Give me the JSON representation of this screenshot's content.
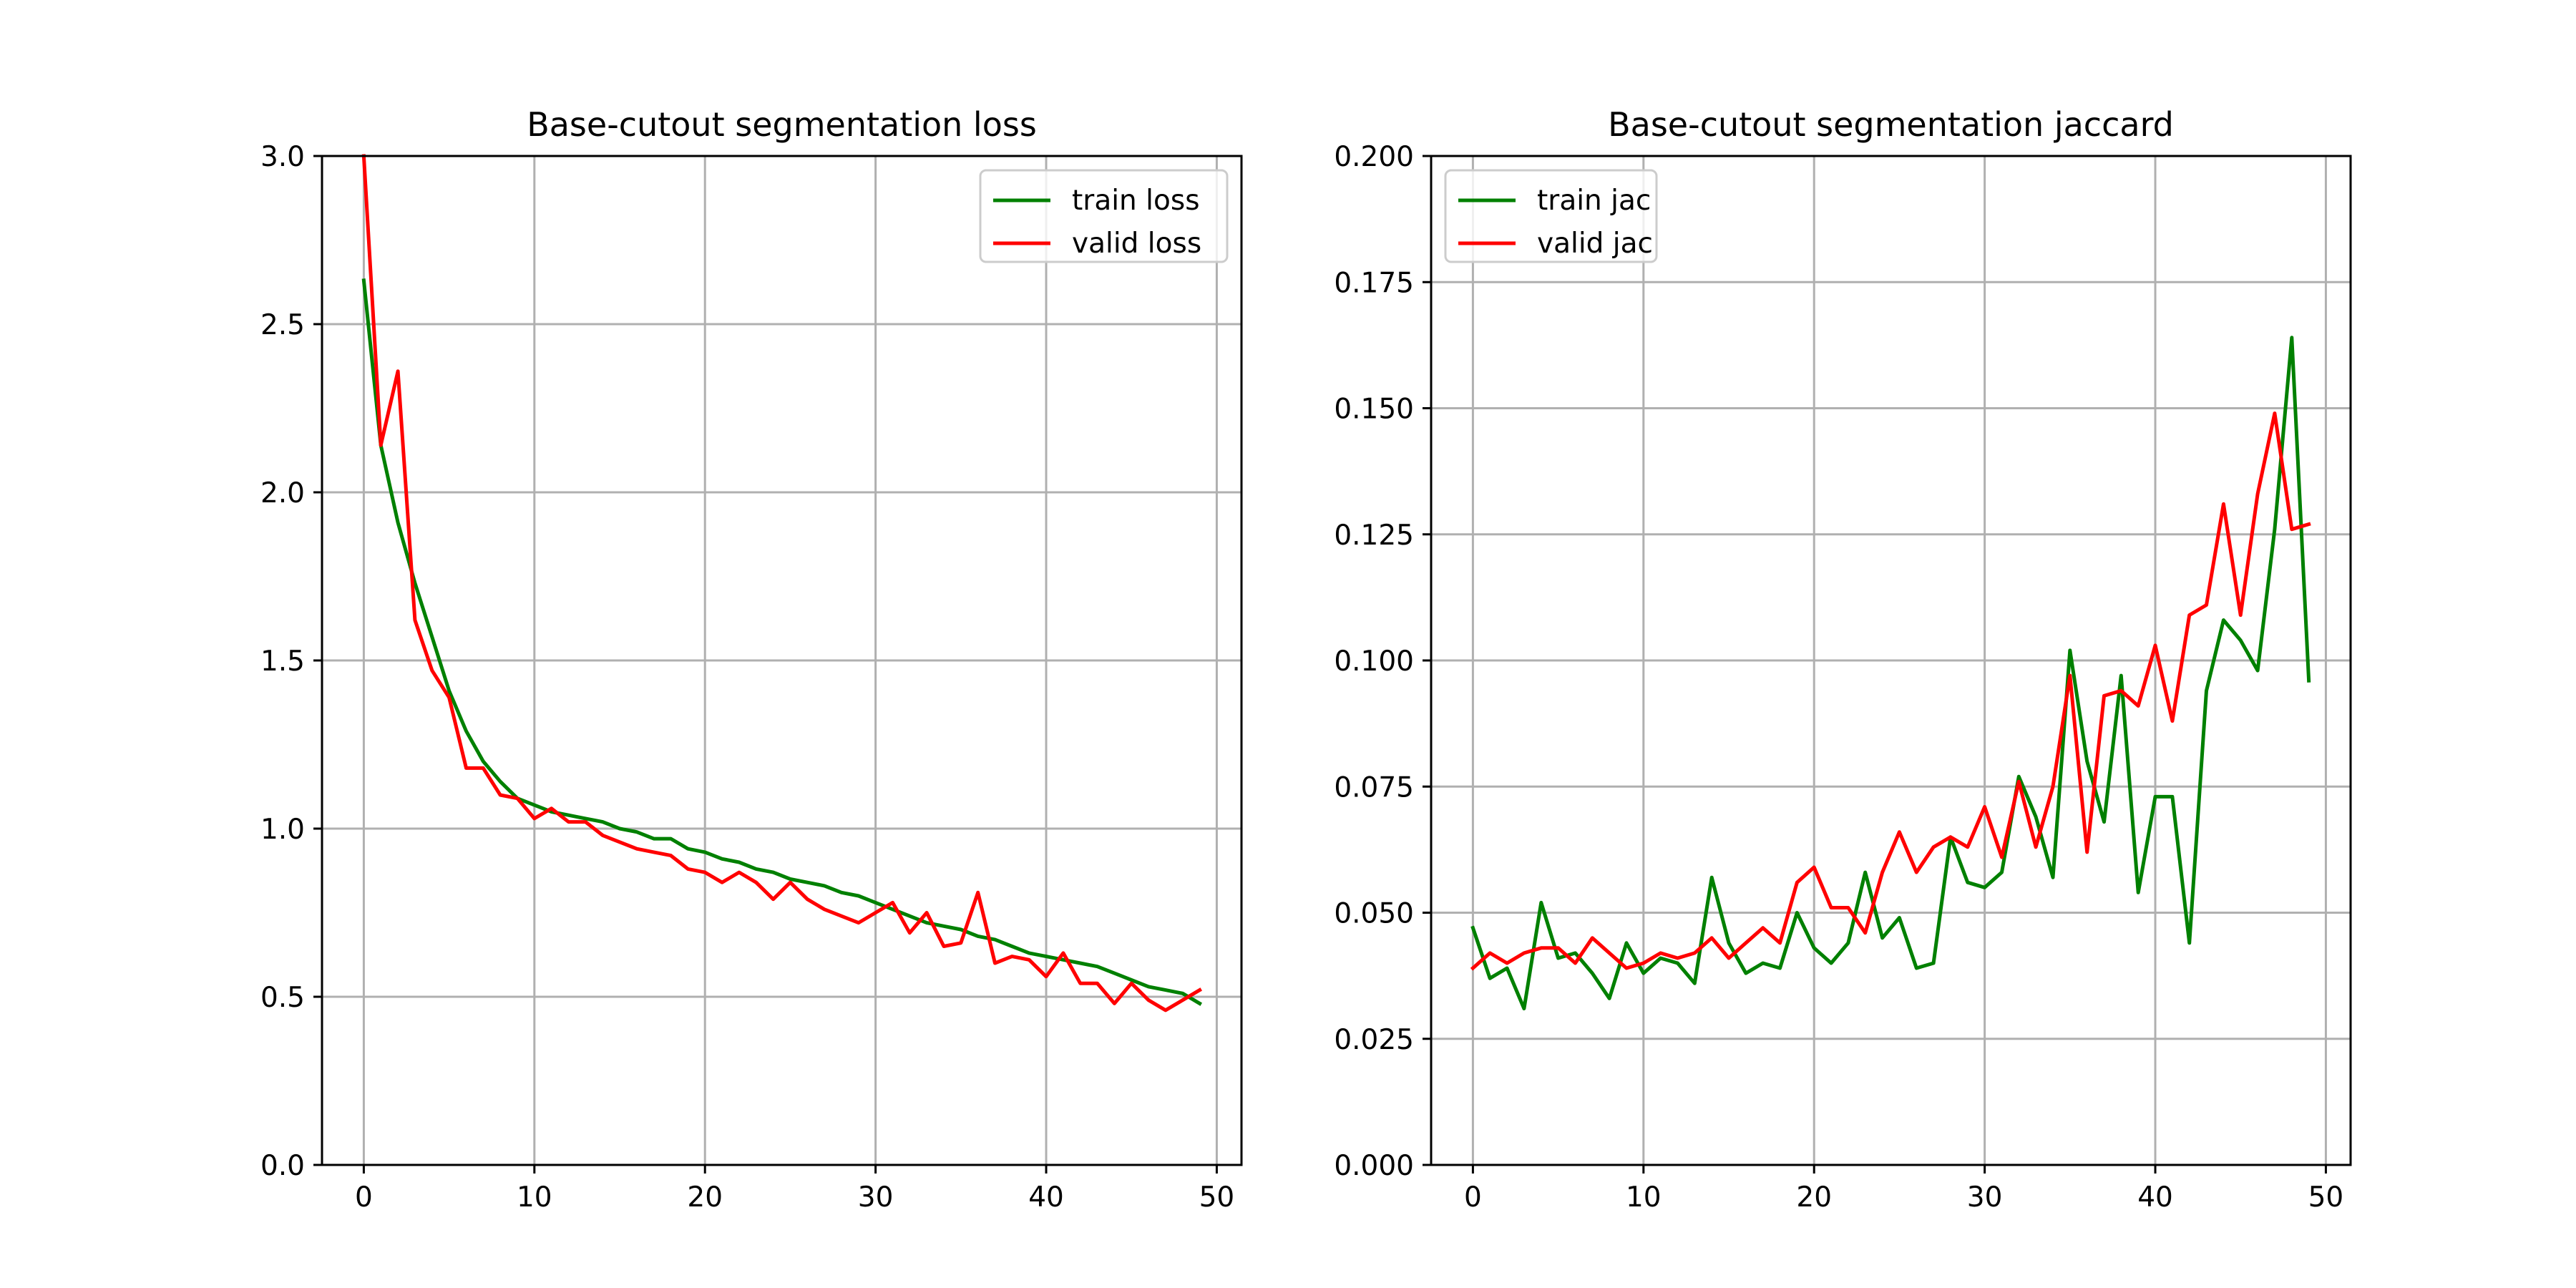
{
  "chart_data": [
    {
      "type": "line",
      "title": "Base-cutout segmentation loss",
      "xlabel": "",
      "ylabel": "",
      "xlim": [
        -2.45,
        51.45
      ],
      "ylim": [
        0.0,
        3.0
      ],
      "xticks": [
        0,
        10,
        20,
        30,
        40,
        50
      ],
      "xtick_labels": [
        "0",
        "10",
        "20",
        "30",
        "40",
        "50"
      ],
      "yticks": [
        0.0,
        0.5,
        1.0,
        1.5,
        2.0,
        2.5,
        3.0
      ],
      "ytick_labels": [
        "0.0",
        "0.5",
        "1.0",
        "1.5",
        "2.0",
        "2.5",
        "3.0"
      ],
      "grid": true,
      "legend_position": "upper right",
      "series": [
        {
          "name": "train loss",
          "color": "#008000",
          "x": [
            0,
            1,
            2,
            3,
            4,
            5,
            6,
            7,
            8,
            9,
            10,
            11,
            12,
            13,
            14,
            15,
            16,
            17,
            18,
            19,
            20,
            21,
            22,
            23,
            24,
            25,
            26,
            27,
            28,
            29,
            30,
            31,
            32,
            33,
            34,
            35,
            36,
            37,
            38,
            39,
            40,
            41,
            42,
            43,
            44,
            45,
            46,
            47,
            48,
            49
          ],
          "y": [
            2.63,
            2.14,
            1.91,
            1.73,
            1.57,
            1.41,
            1.29,
            1.2,
            1.14,
            1.09,
            1.07,
            1.05,
            1.04,
            1.03,
            1.02,
            1.0,
            0.99,
            0.97,
            0.97,
            0.94,
            0.93,
            0.91,
            0.9,
            0.88,
            0.87,
            0.85,
            0.84,
            0.83,
            0.81,
            0.8,
            0.78,
            0.76,
            0.74,
            0.72,
            0.71,
            0.7,
            0.68,
            0.67,
            0.65,
            0.63,
            0.62,
            0.61,
            0.6,
            0.59,
            0.57,
            0.55,
            0.53,
            0.52,
            0.51,
            0.48
          ]
        },
        {
          "name": "valid loss",
          "color": "#ff0000",
          "x": [
            0,
            1,
            2,
            3,
            4,
            5,
            6,
            7,
            8,
            9,
            10,
            11,
            12,
            13,
            14,
            15,
            16,
            17,
            18,
            19,
            20,
            21,
            22,
            23,
            24,
            25,
            26,
            27,
            28,
            29,
            30,
            31,
            32,
            33,
            34,
            35,
            36,
            37,
            38,
            39,
            40,
            41,
            42,
            43,
            44,
            45,
            46,
            47,
            48,
            49
          ],
          "y": [
            3.0,
            2.14,
            2.36,
            1.62,
            1.47,
            1.39,
            1.18,
            1.18,
            1.1,
            1.09,
            1.03,
            1.06,
            1.02,
            1.02,
            0.98,
            0.96,
            0.94,
            0.93,
            0.92,
            0.88,
            0.87,
            0.84,
            0.87,
            0.84,
            0.79,
            0.84,
            0.79,
            0.76,
            0.74,
            0.72,
            0.75,
            0.78,
            0.69,
            0.75,
            0.65,
            0.66,
            0.81,
            0.6,
            0.62,
            0.61,
            0.56,
            0.63,
            0.54,
            0.54,
            0.48,
            0.54,
            0.49,
            0.46,
            0.49,
            0.52
          ]
        }
      ]
    },
    {
      "type": "line",
      "title": "Base-cutout segmentation jaccard",
      "xlabel": "",
      "ylabel": "",
      "xlim": [
        -2.45,
        51.45
      ],
      "ylim": [
        0.0,
        0.2
      ],
      "xticks": [
        0,
        10,
        20,
        30,
        40,
        50
      ],
      "xtick_labels": [
        "0",
        "10",
        "20",
        "30",
        "40",
        "50"
      ],
      "yticks": [
        0.0,
        0.025,
        0.05,
        0.075,
        0.1,
        0.125,
        0.15,
        0.175,
        0.2
      ],
      "ytick_labels": [
        "0.000",
        "0.025",
        "0.050",
        "0.075",
        "0.100",
        "0.125",
        "0.150",
        "0.175",
        "0.200"
      ],
      "grid": true,
      "legend_position": "upper left",
      "series": [
        {
          "name": "train jac",
          "color": "#008000",
          "x": [
            0,
            1,
            2,
            3,
            4,
            5,
            6,
            7,
            8,
            9,
            10,
            11,
            12,
            13,
            14,
            15,
            16,
            17,
            18,
            19,
            20,
            21,
            22,
            23,
            24,
            25,
            26,
            27,
            28,
            29,
            30,
            31,
            32,
            33,
            34,
            35,
            36,
            37,
            38,
            39,
            40,
            41,
            42,
            43,
            44,
            45,
            46,
            47,
            48,
            49
          ],
          "y": [
            0.047,
            0.037,
            0.039,
            0.031,
            0.052,
            0.041,
            0.042,
            0.038,
            0.033,
            0.044,
            0.038,
            0.041,
            0.04,
            0.036,
            0.057,
            0.044,
            0.038,
            0.04,
            0.039,
            0.05,
            0.043,
            0.04,
            0.044,
            0.058,
            0.045,
            0.049,
            0.039,
            0.04,
            0.065,
            0.056,
            0.055,
            0.058,
            0.077,
            0.069,
            0.057,
            0.102,
            0.08,
            0.068,
            0.097,
            0.054,
            0.073,
            0.073,
            0.044,
            0.094,
            0.108,
            0.104,
            0.098,
            0.126,
            0.164,
            0.096
          ]
        },
        {
          "name": "valid jac",
          "color": "#ff0000",
          "x": [
            0,
            1,
            2,
            3,
            4,
            5,
            6,
            7,
            8,
            9,
            10,
            11,
            12,
            13,
            14,
            15,
            16,
            17,
            18,
            19,
            20,
            21,
            22,
            23,
            24,
            25,
            26,
            27,
            28,
            29,
            30,
            31,
            32,
            33,
            34,
            35,
            36,
            37,
            38,
            39,
            40,
            41,
            42,
            43,
            44,
            45,
            46,
            47,
            48,
            49
          ],
          "y": [
            0.039,
            0.042,
            0.04,
            0.042,
            0.043,
            0.043,
            0.04,
            0.045,
            0.042,
            0.039,
            0.04,
            0.042,
            0.041,
            0.042,
            0.045,
            0.041,
            0.044,
            0.047,
            0.044,
            0.056,
            0.059,
            0.051,
            0.051,
            0.046,
            0.058,
            0.066,
            0.058,
            0.063,
            0.065,
            0.063,
            0.071,
            0.061,
            0.076,
            0.063,
            0.075,
            0.097,
            0.062,
            0.093,
            0.094,
            0.091,
            0.103,
            0.088,
            0.109,
            0.111,
            0.131,
            0.109,
            0.133,
            0.149,
            0.126,
            0.127
          ]
        }
      ]
    }
  ]
}
